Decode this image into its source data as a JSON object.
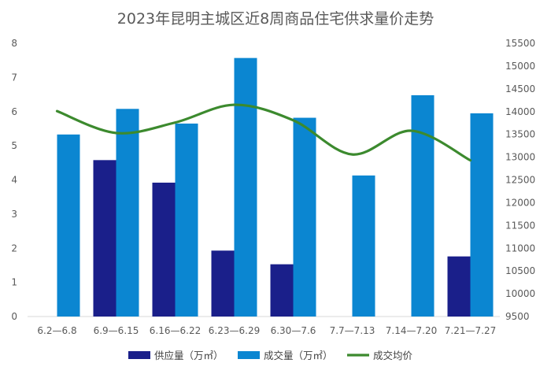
{
  "chart_data": {
    "type": "bar",
    "title": "2023年昆明主城区近8周商品住宅供求量价走势",
    "categories": [
      "6.2—6.8",
      "6.9—6.15",
      "6.16—6.22",
      "6.23—6.29",
      "6.30—7.6",
      "7.7—7.13",
      "7.14—7.20",
      "7.21—7.27"
    ],
    "series": [
      {
        "name": "供应量（万㎡）",
        "type": "bar",
        "axis": "left",
        "color": "#1a1f8a",
        "values": [
          null,
          4.58,
          3.92,
          1.93,
          1.53,
          null,
          null,
          1.76
        ]
      },
      {
        "name": "成交量（万㎡）",
        "type": "bar",
        "axis": "left",
        "color": "#0b86d1",
        "values": [
          5.33,
          6.08,
          5.65,
          7.57,
          5.82,
          4.13,
          6.48,
          5.95
        ]
      },
      {
        "name": "成交均价",
        "type": "line",
        "axis": "right",
        "color": "#3c8a2e",
        "smooth": true,
        "values": [
          14010,
          13530,
          13760,
          14150,
          13810,
          13060,
          13580,
          12930
        ]
      }
    ],
    "y_left": {
      "min": 0,
      "max": 8,
      "ticks": [
        0,
        1,
        2,
        3,
        4,
        5,
        6,
        7,
        8
      ]
    },
    "y_right": {
      "min": 9500,
      "max": 15500,
      "ticks": [
        9500,
        10000,
        10500,
        11000,
        11500,
        12000,
        12500,
        13000,
        13500,
        14000,
        14500,
        15000,
        15500
      ]
    },
    "grid": false,
    "legend": "bottom"
  }
}
